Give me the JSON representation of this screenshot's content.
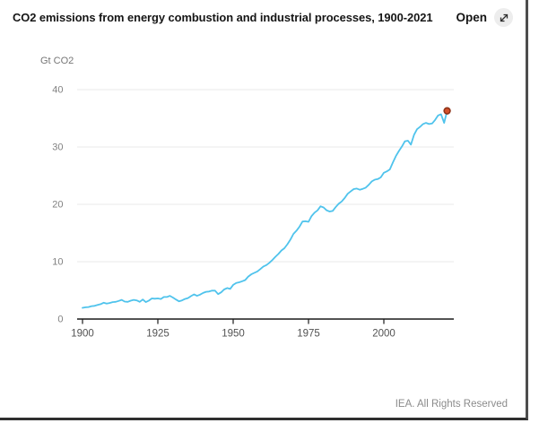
{
  "header": {
    "title": "CO2 emissions from energy combustion and industrial processes, 1900-2021",
    "open_label": "Open"
  },
  "footer": {
    "credit": "IEA. All Rights Reserved"
  },
  "chart_data": {
    "type": "line",
    "title": "CO2 emissions from energy combustion and industrial processes, 1900-2021",
    "unit_label": "Gt CO2",
    "xlabel": "",
    "ylabel": "Gt CO2",
    "xlim": [
      1900,
      2023
    ],
    "ylim": [
      0,
      40
    ],
    "x_ticks": [
      1900,
      1925,
      1950,
      1975,
      2000
    ],
    "y_ticks": [
      0,
      10,
      20,
      30,
      40
    ],
    "grid": "horizontal",
    "legend": "none",
    "colors": {
      "line": "#4FC3EC",
      "marker_fill": "#D4512B",
      "marker_stroke": "#8F3318",
      "grid": "#EAEAEA",
      "axis": "#1A1A1A"
    },
    "series": [
      {
        "name": "CO2 emissions (Gt CO2)",
        "start_year": 1900,
        "end_year": 2021,
        "annual_values": [
          1.95,
          2.05,
          2.1,
          2.25,
          2.3,
          2.45,
          2.6,
          2.85,
          2.7,
          2.8,
          2.95,
          3.0,
          3.15,
          3.35,
          3.05,
          3.0,
          3.2,
          3.35,
          3.25,
          3.0,
          3.4,
          2.95,
          3.2,
          3.6,
          3.55,
          3.6,
          3.5,
          3.85,
          3.85,
          4.05,
          3.75,
          3.4,
          3.1,
          3.25,
          3.5,
          3.65,
          4.0,
          4.3,
          4.05,
          4.25,
          4.55,
          4.75,
          4.8,
          4.95,
          4.95,
          4.35,
          4.65,
          5.15,
          5.4,
          5.25,
          5.95,
          6.3,
          6.4,
          6.6,
          6.8,
          7.4,
          7.8,
          8.05,
          8.3,
          8.7,
          9.15,
          9.4,
          9.8,
          10.3,
          10.85,
          11.35,
          11.95,
          12.35,
          13.05,
          13.85,
          14.85,
          15.4,
          16.1,
          17.0,
          17.05,
          16.95,
          17.95,
          18.55,
          18.95,
          19.65,
          19.45,
          18.95,
          18.75,
          18.85,
          19.5,
          20.1,
          20.5,
          21.1,
          21.85,
          22.25,
          22.65,
          22.75,
          22.55,
          22.7,
          22.9,
          23.4,
          24.0,
          24.3,
          24.4,
          24.7,
          25.5,
          25.75,
          26.1,
          27.3,
          28.4,
          29.3,
          30.1,
          31.0,
          31.1,
          30.4,
          32.1,
          33.1,
          33.5,
          34.0,
          34.2,
          34.0,
          34.1,
          34.7,
          35.5,
          35.7,
          34.2,
          36.3
        ]
      }
    ],
    "endpoint": {
      "year": 2021,
      "value": 36.3
    }
  }
}
